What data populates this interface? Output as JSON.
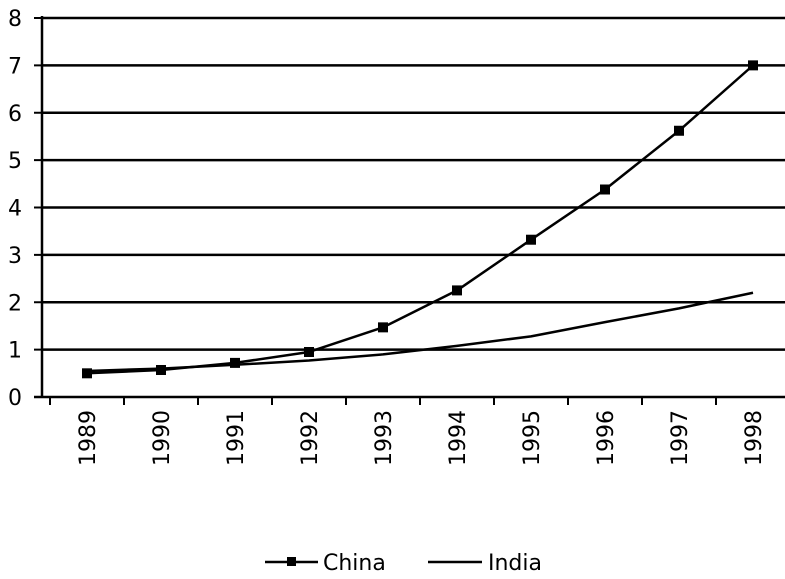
{
  "chart_data": {
    "type": "line",
    "title": "",
    "xlabel": "",
    "ylabel": "",
    "categories": [
      "1989",
      "1990",
      "1991",
      "1992",
      "1993",
      "1994",
      "1995",
      "1996",
      "1997",
      "1998"
    ],
    "ylim": [
      0,
      8
    ],
    "yticks": [
      "0",
      "1",
      "2",
      "3",
      "4",
      "5",
      "6",
      "7",
      "8"
    ],
    "grid": true,
    "legend_position": "bottom",
    "series": [
      {
        "name": "China",
        "marker": "square",
        "color": "#000000",
        "values": [
          0.5,
          0.57,
          0.72,
          0.95,
          1.47,
          2.25,
          3.32,
          4.38,
          5.62,
          7.0
        ]
      },
      {
        "name": "India",
        "marker": "none",
        "color": "#000000",
        "values": [
          0.55,
          0.6,
          0.68,
          0.77,
          0.9,
          1.08,
          1.28,
          1.58,
          1.87,
          2.2
        ]
      }
    ]
  }
}
